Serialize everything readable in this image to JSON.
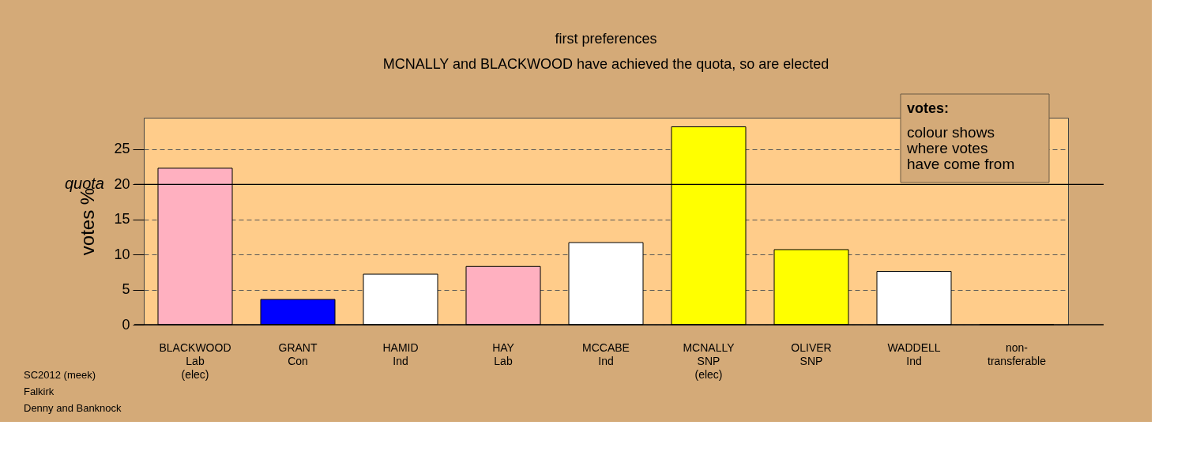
{
  "chart_data": {
    "type": "bar",
    "title": "first preferences",
    "subtitle": "MCNALLY and BLACKWOOD have achieved the quota, so are elected",
    "ylabel": "votes %",
    "categories": [
      "BLACKWOOD\nLab\n(elec)",
      "GRANT\nCon",
      "HAMID\nInd",
      "HAY\nLab",
      "MCCABE\nInd",
      "MCNALLY\nSNP\n(elec)",
      "OLIVER\nSNP",
      "WADDELL\nInd",
      "non-\ntransferable"
    ],
    "values": [
      22.3,
      3.6,
      7.2,
      8.3,
      11.7,
      28.2,
      10.7,
      7.6,
      0
    ],
    "colors": [
      "#ffb0c0",
      "#0000ff",
      "#ffffff",
      "#ffb0c0",
      "#ffffff",
      "#ffff00",
      "#ffff00",
      "#ffffff",
      "#000000"
    ],
    "ylim": [
      0,
      29.5
    ],
    "yticks": [
      0,
      5,
      10,
      15,
      20,
      25
    ],
    "grid": "y",
    "ref_lines": [
      {
        "axis": "y",
        "value": 20,
        "label": "quota",
        "color": "#000000",
        "line_style": "solid"
      }
    ],
    "legend_title": "votes:",
    "annotations": [
      "colour shows\nwhere votes\nhave come from",
      "SC2012 (meek)\nFalkirk\nDenny and Banknock"
    ]
  }
}
